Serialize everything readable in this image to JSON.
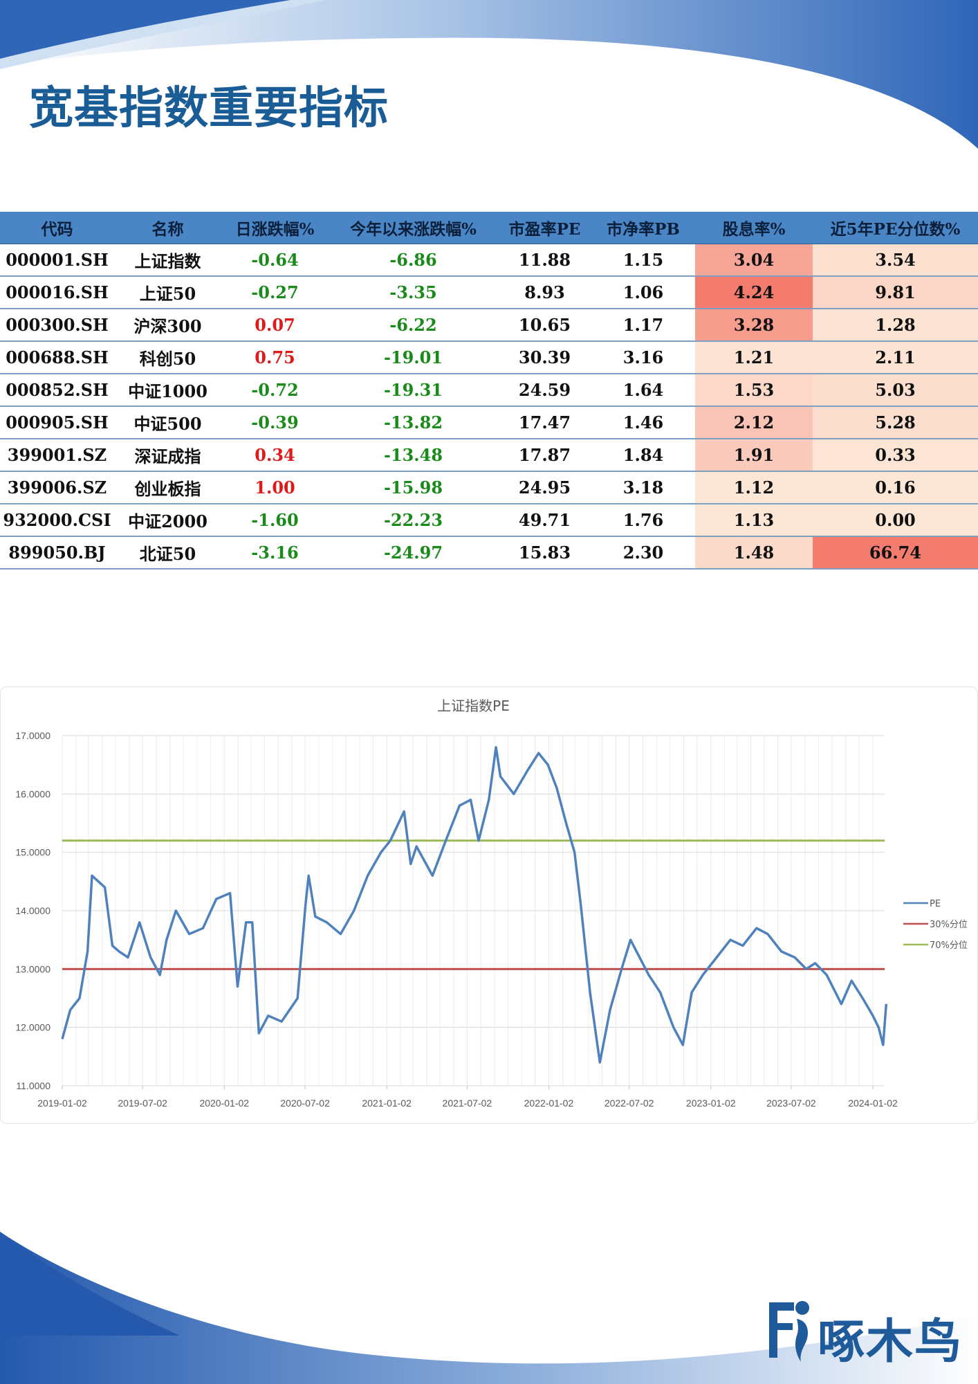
{
  "title": "宽基指数重要指标",
  "colors": {
    "title": "#1a5c96",
    "header_bg": "#4a86c5",
    "negative": "#1a8a1a",
    "positive": "#e01919",
    "pe_line": "#4f81bd",
    "line_30": "#c0504d",
    "line_70": "#9bbb59"
  },
  "table": {
    "headers": [
      "代码",
      "名称",
      "日涨跌幅%",
      "今年以来涨跌幅%",
      "市盈率PE",
      "市净率PB",
      "股息率%",
      "近5年PE分位数%"
    ],
    "rows": [
      {
        "code": "000001.SH",
        "name": "上证指数",
        "daily": "-0.64",
        "ytd": "-6.86",
        "pe": "11.88",
        "pb": "1.15",
        "dividend": "3.04",
        "pe_pct": "3.54"
      },
      {
        "code": "000016.SH",
        "name": "上证50",
        "daily": "-0.27",
        "ytd": "-3.35",
        "pe": "8.93",
        "pb": "1.06",
        "dividend": "4.24",
        "pe_pct": "9.81"
      },
      {
        "code": "000300.SH",
        "name": "沪深300",
        "daily": "0.07",
        "ytd": "-6.22",
        "pe": "10.65",
        "pb": "1.17",
        "dividend": "3.28",
        "pe_pct": "1.28"
      },
      {
        "code": "000688.SH",
        "name": "科创50",
        "daily": "0.75",
        "ytd": "-19.01",
        "pe": "30.39",
        "pb": "3.16",
        "dividend": "1.21",
        "pe_pct": "2.11"
      },
      {
        "code": "000852.SH",
        "name": "中证1000",
        "daily": "-0.72",
        "ytd": "-19.31",
        "pe": "24.59",
        "pb": "1.64",
        "dividend": "1.53",
        "pe_pct": "5.03"
      },
      {
        "code": "000905.SH",
        "name": "中证500",
        "daily": "-0.39",
        "ytd": "-13.82",
        "pe": "17.47",
        "pb": "1.46",
        "dividend": "2.12",
        "pe_pct": "5.28"
      },
      {
        "code": "399001.SZ",
        "name": "深证成指",
        "daily": "0.34",
        "ytd": "-13.48",
        "pe": "17.87",
        "pb": "1.84",
        "dividend": "1.91",
        "pe_pct": "0.33"
      },
      {
        "code": "399006.SZ",
        "name": "创业板指",
        "daily": "1.00",
        "ytd": "-15.98",
        "pe": "24.95",
        "pb": "3.18",
        "dividend": "1.12",
        "pe_pct": "0.16"
      },
      {
        "code": "932000.CSI",
        "name": "中证2000",
        "daily": "-1.60",
        "ytd": "-22.23",
        "pe": "49.71",
        "pb": "1.76",
        "dividend": "1.13",
        "pe_pct": "0.00"
      },
      {
        "code": "899050.BJ",
        "name": "北证50",
        "daily": "-3.16",
        "ytd": "-24.97",
        "pe": "15.83",
        "pb": "2.30",
        "dividend": "1.48",
        "pe_pct": "66.74"
      }
    ]
  },
  "chart_data": {
    "type": "line",
    "title": "上证指数PE",
    "xlabel": "",
    "ylabel": "",
    "ylim": [
      11,
      17
    ],
    "yticks": [
      "11.0000",
      "12.0000",
      "13.0000",
      "14.0000",
      "15.0000",
      "16.0000",
      "17.0000"
    ],
    "xticks": [
      "2019-01-02",
      "2019-07-02",
      "2020-01-02",
      "2020-07-02",
      "2021-01-02",
      "2021-07-02",
      "2022-01-02",
      "2022-07-02",
      "2023-01-02",
      "2023-07-02",
      "2024-01-02"
    ],
    "legend_position": "right",
    "grid": true,
    "series": [
      {
        "name": "PE",
        "type": "line",
        "x": [
          "2019-01-02",
          "2019-01-20",
          "2019-02-10",
          "2019-02-28",
          "2019-03-10",
          "2019-04-08",
          "2019-04-25",
          "2019-05-10",
          "2019-05-30",
          "2019-06-25",
          "2019-07-20",
          "2019-08-10",
          "2019-08-25",
          "2019-09-15",
          "2019-10-15",
          "2019-11-15",
          "2019-12-15",
          "2020-01-15",
          "2020-02-01",
          "2020-02-20",
          "2020-03-05",
          "2020-03-20",
          "2020-04-10",
          "2020-05-10",
          "2020-06-15",
          "2020-07-03",
          "2020-07-10",
          "2020-07-25",
          "2020-08-20",
          "2020-09-20",
          "2020-10-20",
          "2020-11-20",
          "2020-12-20",
          "2021-01-10",
          "2021-02-10",
          "2021-02-25",
          "2021-03-10",
          "2021-04-15",
          "2021-05-15",
          "2021-06-15",
          "2021-07-10",
          "2021-07-28",
          "2021-08-20",
          "2021-09-05",
          "2021-09-15",
          "2021-10-15",
          "2021-11-15",
          "2021-12-10",
          "2021-12-31",
          "2022-01-20",
          "2022-02-10",
          "2022-03-01",
          "2022-03-15",
          "2022-04-05",
          "2022-04-27",
          "2022-05-20",
          "2022-06-15",
          "2022-07-05",
          "2022-08-15",
          "2022-09-10",
          "2022-10-10",
          "2022-10-31",
          "2022-11-20",
          "2022-12-15",
          "2023-01-15",
          "2023-02-15",
          "2023-03-15",
          "2023-04-15",
          "2023-05-10",
          "2023-06-10",
          "2023-07-10",
          "2023-08-05",
          "2023-08-25",
          "2023-09-20",
          "2023-10-23",
          "2023-11-15",
          "2023-12-10",
          "2024-01-02",
          "2024-01-15",
          "2024-01-25",
          "2024-02-01"
        ],
        "values": [
          11.8,
          12.3,
          12.5,
          13.3,
          14.6,
          14.4,
          13.4,
          13.3,
          13.2,
          13.8,
          13.2,
          12.9,
          13.5,
          14.0,
          13.6,
          13.7,
          14.2,
          14.3,
          12.7,
          13.8,
          13.8,
          11.9,
          12.2,
          12.1,
          12.5,
          14.1,
          14.6,
          13.9,
          13.8,
          13.6,
          14.0,
          14.6,
          15.0,
          15.2,
          15.7,
          14.8,
          15.1,
          14.6,
          15.2,
          15.8,
          15.9,
          15.2,
          15.9,
          16.8,
          16.3,
          16.0,
          16.4,
          16.7,
          16.5,
          16.1,
          15.5,
          15.0,
          14.1,
          12.6,
          11.4,
          12.3,
          13.0,
          13.5,
          12.9,
          12.6,
          12.0,
          11.7,
          12.6,
          12.9,
          13.2,
          13.5,
          13.4,
          13.7,
          13.6,
          13.3,
          13.2,
          13.0,
          13.1,
          12.9,
          12.4,
          12.8,
          12.5,
          12.2,
          12.0,
          11.7,
          12.4
        ]
      },
      {
        "name": "30%分位",
        "type": "hline",
        "value": 13.0
      },
      {
        "name": "70%分位",
        "type": "hline",
        "value": 15.2
      }
    ]
  },
  "logo": {
    "text": "啄木鸟",
    "mark": "logo-mark-icon"
  }
}
